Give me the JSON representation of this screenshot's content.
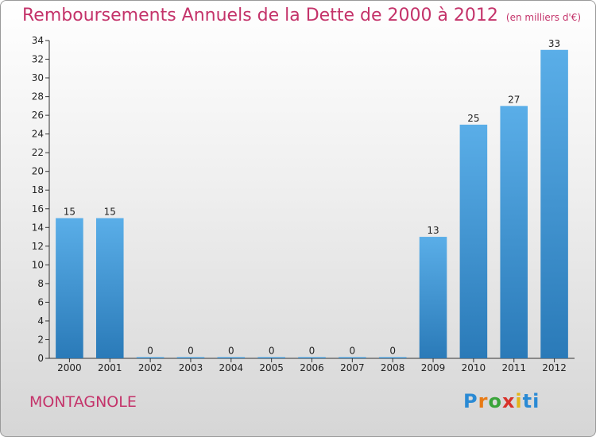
{
  "header": {
    "title": "Remboursements Annuels de la Dette de 2000 à 2012",
    "unit": "(en milliers d'€)"
  },
  "footer": {
    "place": "MONTAGNOLE",
    "logo": "Proxiti"
  },
  "colors": {
    "title": "#c4336a",
    "bar_top": "#5aaee8",
    "bar_bottom": "#2a7ab8"
  },
  "chart_data": {
    "type": "bar",
    "title": "Remboursements Annuels de la Dette de 2000 à 2012",
    "xlabel": "",
    "ylabel": "",
    "categories": [
      "2000",
      "2001",
      "2002",
      "2003",
      "2004",
      "2005",
      "2006",
      "2007",
      "2008",
      "2009",
      "2010",
      "2011",
      "2012"
    ],
    "values": [
      15,
      15,
      0,
      0,
      0,
      0,
      0,
      0,
      0,
      13,
      25,
      27,
      33
    ],
    "ylim": [
      0,
      34
    ],
    "yticks": [
      0,
      2,
      4,
      6,
      8,
      10,
      12,
      14,
      16,
      18,
      20,
      22,
      24,
      26,
      28,
      30,
      32,
      34
    ],
    "grid": false,
    "legend": "none"
  }
}
